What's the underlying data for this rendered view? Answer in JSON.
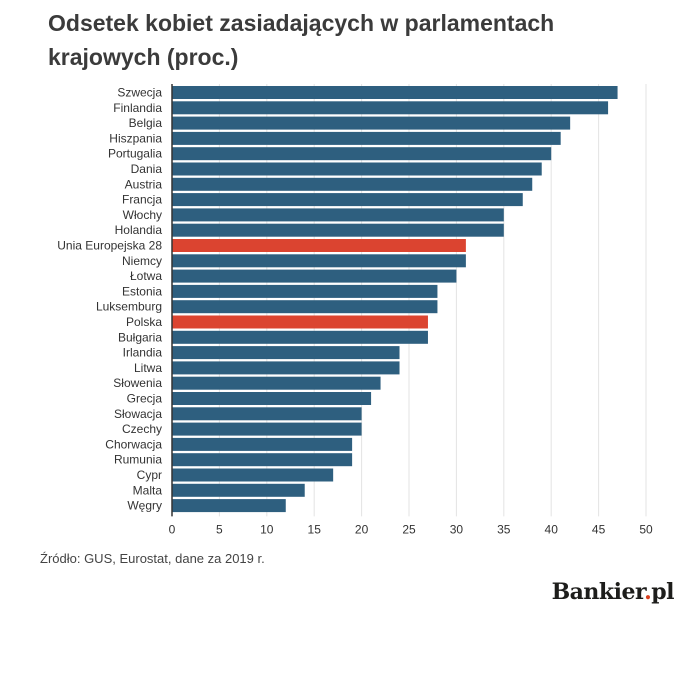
{
  "chart_data": {
    "type": "bar",
    "orientation": "horizontal",
    "title": "Odsetek kobiet zasiadających w parlamentach krajowych (proc.)",
    "categories": [
      "Szwecja",
      "Finlandia",
      "Belgia",
      "Hiszpania",
      "Portugalia",
      "Dania",
      "Austria",
      "Francja",
      "Włochy",
      "Holandia",
      "Unia Europejska 28",
      "Niemcy",
      "Łotwa",
      "Estonia",
      "Luksemburg",
      "Polska",
      "Bułgaria",
      "Irlandia",
      "Litwa",
      "Słowenia",
      "Grecja",
      "Słowacja",
      "Czechy",
      "Chorwacja",
      "Rumunia",
      "Cypr",
      "Malta",
      "Węgry"
    ],
    "values": [
      47,
      46,
      42,
      41,
      40,
      39,
      38,
      37,
      35,
      35,
      31,
      31,
      30,
      28,
      28,
      27,
      27,
      24,
      24,
      22,
      21,
      20,
      20,
      19,
      19,
      17,
      14,
      12
    ],
    "highlighted": [
      "Unia Europejska 28",
      "Polska"
    ],
    "xlim": [
      0,
      50
    ],
    "xticks": [
      0,
      5,
      10,
      15,
      20,
      25,
      30,
      35,
      40,
      45,
      50
    ],
    "grid": true,
    "legend": "none",
    "colors": {
      "bar": "#2e5f7f",
      "highlight": "#db4430",
      "grid": "#e3e3e3",
      "axis": "#333333"
    }
  },
  "source_text": "Źródło: GUS, Eurostat, dane za 2019 r.",
  "logo": {
    "main": "Bankier",
    "dot": ".",
    "suffix": "pl"
  }
}
